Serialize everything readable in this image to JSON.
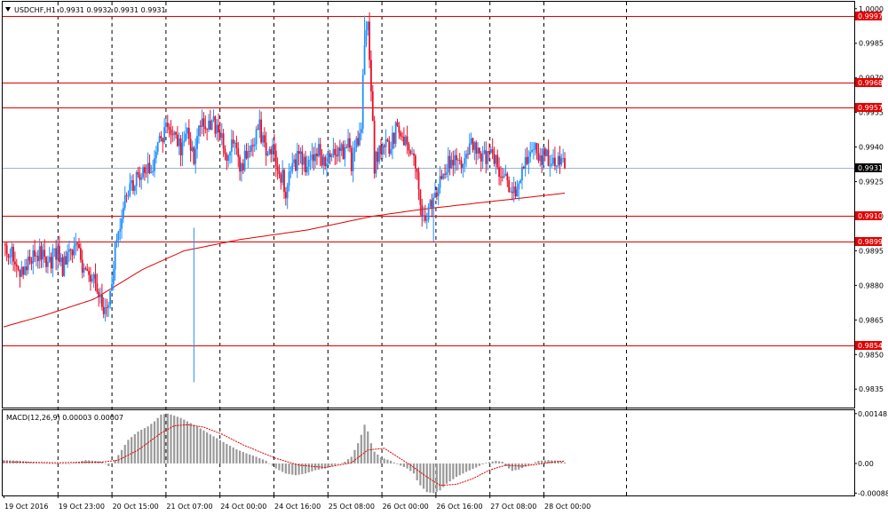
{
  "chart_data": {
    "type": "candlestick",
    "symbol_header": "USDCHF,H1",
    "ohlc_header": "0.9931 0.9932 0.9931 0.9931",
    "price_range": [
      0.9827,
      1.0003
    ],
    "price_ticks": [
      "1.0000",
      "0.9985",
      "0.9970",
      "0.9955",
      "0.9940",
      "0.9925",
      "0.9910",
      "0.9895",
      "0.9880",
      "0.9865",
      "0.9850",
      "0.9835"
    ],
    "levels": [
      {
        "label": "0.9997",
        "value": 0.9997
      },
      {
        "label": "0.9968",
        "value": 0.9968
      },
      {
        "label": "0.9957",
        "value": 0.9957
      },
      {
        "label": "0.9910",
        "value": 0.991
      },
      {
        "label": "0.9899",
        "value": 0.9899
      },
      {
        "label": "0.9854",
        "value": 0.9854
      }
    ],
    "current_price": {
      "label": "0.9931",
      "value": 0.9931
    },
    "x_tick_labels": [
      "19 Oct 2016",
      "19 Oct 23:00",
      "20 Oct 15:00",
      "21 Oct 07:00",
      "24 Oct 00:00",
      "24 Oct 16:00",
      "25 Oct 08:00",
      "26 Oct 00:00",
      "26 Oct 16:00",
      "27 Oct 08:00",
      "28 Oct 00:00"
    ],
    "close_path": [
      [
        0,
        0.9898
      ],
      [
        4,
        0.9895
      ],
      [
        8,
        0.9888
      ],
      [
        12,
        0.9885
      ],
      [
        16,
        0.9892
      ],
      [
        20,
        0.9895
      ],
      [
        24,
        0.9893
      ],
      [
        28,
        0.989
      ],
      [
        32,
        0.9895
      ],
      [
        36,
        0.9888
      ],
      [
        40,
        0.9893
      ],
      [
        44,
        0.9897
      ],
      [
        48,
        0.9889
      ],
      [
        52,
        0.9884
      ],
      [
        56,
        0.988
      ],
      [
        60,
        0.9872
      ],
      [
        64,
        0.9868
      ],
      [
        68,
        0.9895
      ],
      [
        72,
        0.9912
      ],
      [
        76,
        0.992
      ],
      [
        80,
        0.9925
      ],
      [
        84,
        0.9928
      ],
      [
        86,
        0.9932
      ],
      [
        90,
        0.993
      ],
      [
        94,
        0.9941
      ],
      [
        100,
        0.9948
      ],
      [
        104,
        0.9944
      ],
      [
        108,
        0.994
      ],
      [
        112,
        0.9948
      ],
      [
        116,
        0.9936
      ],
      [
        120,
        0.9952
      ],
      [
        124,
        0.9947
      ],
      [
        128,
        0.995
      ],
      [
        132,
        0.9945
      ],
      [
        136,
        0.9938
      ],
      [
        140,
        0.9943
      ],
      [
        144,
        0.993
      ],
      [
        148,
        0.9937
      ],
      [
        152,
        0.9942
      ],
      [
        156,
        0.9948
      ],
      [
        160,
        0.9937
      ],
      [
        164,
        0.9939
      ],
      [
        168,
        0.993
      ],
      [
        170,
        0.9927
      ],
      [
        172,
        0.9921
      ],
      [
        176,
        0.993
      ],
      [
        180,
        0.9936
      ],
      [
        184,
        0.9932
      ],
      [
        188,
        0.9935
      ],
      [
        192,
        0.9938
      ],
      [
        196,
        0.9933
      ],
      [
        200,
        0.9938
      ],
      [
        204,
        0.9936
      ],
      [
        208,
        0.9939
      ],
      [
        210,
        0.9943
      ],
      [
        212,
        0.9933
      ],
      [
        214,
        0.994
      ],
      [
        216,
        0.994
      ],
      [
        218,
        0.995
      ],
      [
        220,
        0.9988
      ],
      [
        222,
        0.9994
      ],
      [
        224,
        0.9963
      ],
      [
        226,
        0.9932
      ],
      [
        228,
        0.9936
      ],
      [
        230,
        0.994
      ],
      [
        232,
        0.9942
      ],
      [
        236,
        0.994
      ],
      [
        240,
        0.995
      ],
      [
        244,
        0.9944
      ],
      [
        248,
        0.9937
      ],
      [
        252,
        0.993
      ],
      [
        254,
        0.9915
      ],
      [
        258,
        0.991
      ],
      [
        262,
        0.9916
      ],
      [
        266,
        0.9928
      ],
      [
        270,
        0.9932
      ],
      [
        274,
        0.9936
      ],
      [
        278,
        0.9934
      ],
      [
        282,
        0.9937
      ],
      [
        286,
        0.9941
      ],
      [
        290,
        0.9938
      ],
      [
        294,
        0.9934
      ],
      [
        298,
        0.9938
      ],
      [
        302,
        0.993
      ],
      [
        306,
        0.9927
      ],
      [
        310,
        0.9917
      ],
      [
        314,
        0.9926
      ],
      [
        318,
        0.9934
      ],
      [
        322,
        0.9942
      ],
      [
        326,
        0.9937
      ],
      [
        330,
        0.9935
      ],
      [
        334,
        0.9935
      ],
      [
        338,
        0.9935
      ],
      [
        342,
        0.9931
      ]
    ],
    "ma_path": [
      [
        0,
        0.9862
      ],
      [
        25,
        0.9867
      ],
      [
        55,
        0.9874
      ],
      [
        85,
        0.9887
      ],
      [
        110,
        0.9895
      ],
      [
        145,
        0.99
      ],
      [
        185,
        0.9904
      ],
      [
        225,
        0.991
      ],
      [
        255,
        0.9913
      ],
      [
        280,
        0.9915
      ],
      [
        305,
        0.9917
      ],
      [
        342,
        0.992
      ]
    ],
    "macd": {
      "label": "MACD(12,26,9) 0.00003 0.00007",
      "range": [
        -0.00095,
        0.00158
      ],
      "ticks": [
        "0.00148",
        "0.00",
        "-0.00088"
      ],
      "histogram_path": [
        [
          0,
          0.0001
        ],
        [
          10,
          8e-05
        ],
        [
          20,
          2e-05
        ],
        [
          30,
          0.0
        ],
        [
          40,
          0.0
        ],
        [
          45,
          4e-05
        ],
        [
          50,
          0.0001
        ],
        [
          55,
          8e-05
        ],
        [
          60,
          5e-05
        ],
        [
          64,
          -8e-05
        ],
        [
          68,
          0.0001
        ],
        [
          72,
          0.0004
        ],
        [
          76,
          0.0007
        ],
        [
          82,
          0.00095
        ],
        [
          88,
          0.0011
        ],
        [
          92,
          0.00125
        ],
        [
          96,
          0.00145
        ],
        [
          100,
          0.00148
        ],
        [
          104,
          0.00142
        ],
        [
          108,
          0.00135
        ],
        [
          112,
          0.00125
        ],
        [
          118,
          0.0011
        ],
        [
          124,
          0.00092
        ],
        [
          130,
          0.00075
        ],
        [
          136,
          0.00058
        ],
        [
          142,
          0.00042
        ],
        [
          148,
          0.0003
        ],
        [
          154,
          0.0002
        ],
        [
          160,
          8e-05
        ],
        [
          166,
          -0.00015
        ],
        [
          172,
          -0.0003
        ],
        [
          178,
          -0.00035
        ],
        [
          184,
          -0.0003
        ],
        [
          190,
          -0.0002
        ],
        [
          196,
          -0.00015
        ],
        [
          202,
          -5e-05
        ],
        [
          208,
          5e-05
        ],
        [
          212,
          0.0002
        ],
        [
          216,
          0.0006
        ],
        [
          218,
          0.00085
        ],
        [
          220,
          0.00115
        ],
        [
          222,
          0.00095
        ],
        [
          224,
          0.0006
        ],
        [
          226,
          0.00035
        ],
        [
          230,
          0.00018
        ],
        [
          236,
          8e-05
        ],
        [
          240,
          -2e-05
        ],
        [
          246,
          -0.00015
        ],
        [
          250,
          -0.0003
        ],
        [
          252,
          -0.0005
        ],
        [
          254,
          -0.00065
        ],
        [
          258,
          -0.00085
        ],
        [
          262,
          -0.00088
        ],
        [
          266,
          -0.0008
        ],
        [
          270,
          -0.0006
        ],
        [
          276,
          -0.0004
        ],
        [
          282,
          -0.00025
        ],
        [
          288,
          -0.00012
        ],
        [
          294,
          2e-05
        ],
        [
          300,
          8e-05
        ],
        [
          304,
          5e-05
        ],
        [
          306,
          -8e-05
        ],
        [
          310,
          -0.00022
        ],
        [
          314,
          -0.00018
        ],
        [
          320,
          -5e-05
        ],
        [
          326,
          8e-05
        ],
        [
          332,
          0.0001
        ],
        [
          338,
          8e-05
        ],
        [
          342,
          3e-05
        ]
      ],
      "signal_path": [
        [
          0,
          5e-05
        ],
        [
          30,
          2e-05
        ],
        [
          60,
          4e-05
        ],
        [
          70,
          0.0001
        ],
        [
          82,
          0.0004
        ],
        [
          96,
          0.0009
        ],
        [
          104,
          0.00112
        ],
        [
          112,
          0.00115
        ],
        [
          122,
          0.00108
        ],
        [
          134,
          0.00085
        ],
        [
          146,
          0.00055
        ],
        [
          156,
          0.00035
        ],
        [
          166,
          0.00015
        ],
        [
          180,
          -5e-05
        ],
        [
          196,
          -0.00012
        ],
        [
          212,
          2e-05
        ],
        [
          222,
          0.0004
        ],
        [
          232,
          0.00045
        ],
        [
          240,
          0.0002
        ],
        [
          248,
          -5e-05
        ],
        [
          258,
          -0.0004
        ],
        [
          266,
          -0.00065
        ],
        [
          276,
          -0.00062
        ],
        [
          286,
          -0.00045
        ],
        [
          296,
          -0.0002
        ],
        [
          306,
          -5e-05
        ],
        [
          316,
          -8e-05
        ],
        [
          326,
          -2e-05
        ],
        [
          336,
          5e-05
        ],
        [
          342,
          7e-05
        ]
      ]
    }
  }
}
